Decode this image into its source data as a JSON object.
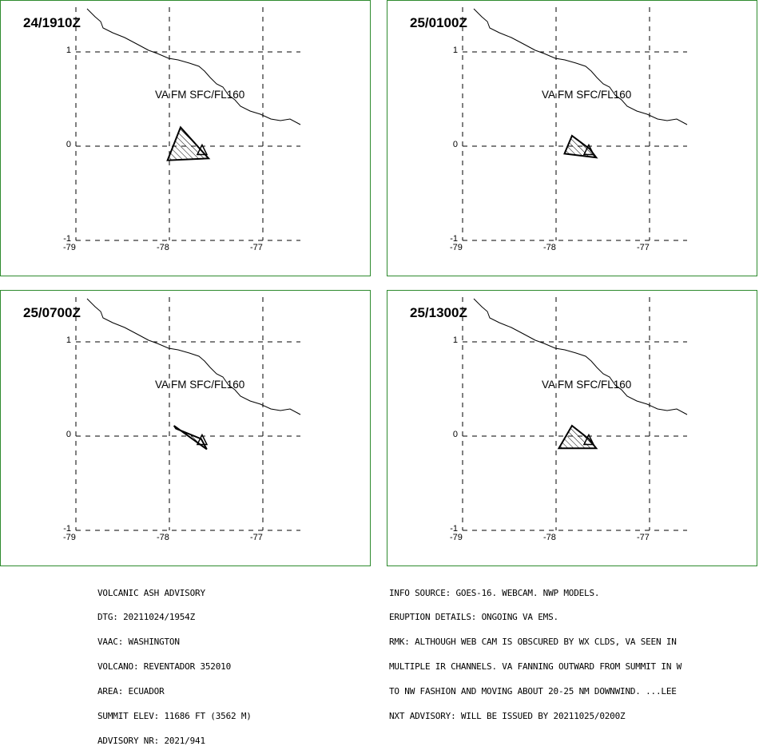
{
  "panels": [
    {
      "time": "24/1910Z",
      "level": "VA FM SFC/FL160",
      "ash": [
        [
          -77.88,
          0.2
        ],
        [
          -78.02,
          -0.15
        ],
        [
          -77.58,
          -0.13
        ],
        [
          -77.68,
          -0.02
        ]
      ]
    },
    {
      "time": "25/0100Z",
      "level": "VA FM SFC/FL160",
      "ash": [
        [
          -77.83,
          0.11
        ],
        [
          -77.91,
          -0.08
        ],
        [
          -77.57,
          -0.12
        ],
        [
          -77.64,
          -0.03
        ]
      ]
    },
    {
      "time": "25/0700Z",
      "level": "VA FM SFC/FL160",
      "ash": [
        [
          -77.93,
          0.08
        ],
        [
          -77.95,
          0.11
        ],
        [
          -77.6,
          -0.14
        ],
        [
          -77.66,
          -0.03
        ]
      ]
    },
    {
      "time": "25/1300Z",
      "level": "VA FM SFC/FL160",
      "ash": [
        [
          -77.83,
          0.11
        ],
        [
          -77.97,
          -0.13
        ],
        [
          -77.57,
          -0.13
        ],
        [
          -77.65,
          -0.03
        ]
      ]
    }
  ],
  "axes": {
    "lon_ticks": [
      "-79",
      "-78",
      "-77"
    ],
    "lat_ticks": [
      "1",
      "0",
      "-1"
    ],
    "lon_values": [
      -79,
      -78,
      -77
    ],
    "lat_values": [
      1,
      0,
      -1
    ]
  },
  "volcano_marker": {
    "lon": -77.65,
    "lat": -0.08,
    "symbol": "volcano-triangle"
  },
  "advisory_left": [
    "VOLCANIC ASH ADVISORY",
    "DTG: 20211024/1954Z",
    "VAAC: WASHINGTON",
    "VOLCANO: REVENTADOR 352010",
    "AREA: ECUADOR",
    "SUMMIT ELEV: 11686 FT (3562 M)",
    "ADVISORY NR: 2021/941"
  ],
  "advisory_right": [
    "INFO SOURCE: GOES-16. WEBCAM. NWP MODELS.",
    "ERUPTION DETAILS: ONGOING VA EMS.",
    "RMK: ALTHOUGH WEB CAM IS OBSCURED BY WX CLDS, VA SEEN IN",
    "MULTIPLE IR CHANNELS. VA FANNING OUTWARD FROM SUMMIT IN W",
    "TO NW FASHION AND MOVING ABOUT 20-25 NM DOWNWIND. ...LEE",
    "NXT ADVISORY: WILL BE ISSUED BY 20211025/0200Z"
  ],
  "colors": {
    "panel_border": "#2e8b2e",
    "grid": "#000000",
    "coast": "#000000"
  }
}
